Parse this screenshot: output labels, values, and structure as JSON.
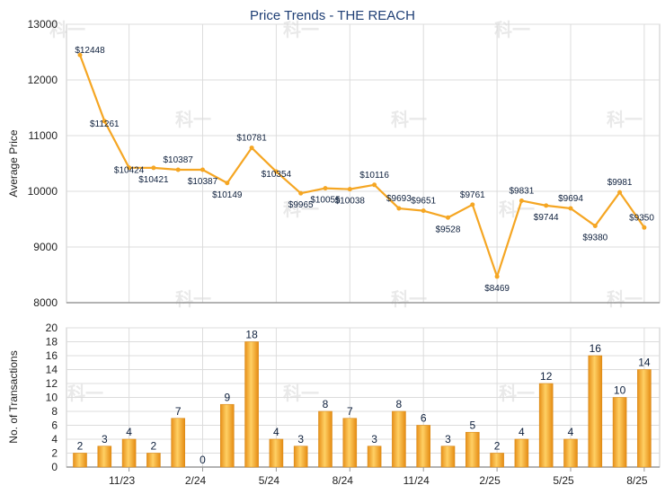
{
  "chart_data": [
    {
      "type": "line",
      "title": "Price Trends - THE REACH",
      "ylabel": "Average Price",
      "ylim": [
        8000,
        13000
      ],
      "yticks": [
        "8000",
        "9000",
        "10000",
        "11000",
        "12000",
        "13000"
      ],
      "grid": true,
      "color": "#f5a623",
      "series": [
        {
          "values": [
            12448,
            11261,
            10424,
            10421,
            10387,
            10387,
            10149,
            10781,
            10354,
            9965,
            10055,
            10038,
            10116,
            9693,
            9651,
            9528,
            9761,
            8469,
            9831,
            9744,
            9694,
            9380,
            9981,
            9350
          ],
          "labels": [
            "$12448",
            "$11261",
            "$10424",
            "$10421",
            "$10387",
            "$10387",
            "$10149",
            "$10781",
            "$10354",
            "$9965",
            "$10055",
            "$10038",
            "$10116",
            "$9693",
            "$9651",
            "$9528",
            "$9761",
            "$8469",
            "$9831",
            "$9744",
            "$9694",
            "$9380",
            "$9981",
            "$9350"
          ]
        }
      ]
    },
    {
      "type": "bar",
      "ylabel": "No. of Transactions",
      "ylim": [
        0,
        20
      ],
      "yticks": [
        "0",
        "2",
        "4",
        "6",
        "8",
        "10",
        "12",
        "14",
        "16",
        "18",
        "20"
      ],
      "xticks": [
        "11/23",
        "2/24",
        "5/24",
        "8/24",
        "11/24",
        "2/25",
        "5/25",
        "8/25"
      ],
      "grid": true,
      "color": "#f5a623",
      "values": [
        2,
        3,
        4,
        2,
        7,
        0,
        9,
        18,
        4,
        3,
        8,
        7,
        3,
        8,
        6,
        3,
        5,
        2,
        4,
        12,
        4,
        16,
        10,
        14
      ]
    }
  ],
  "watermark": "科一"
}
